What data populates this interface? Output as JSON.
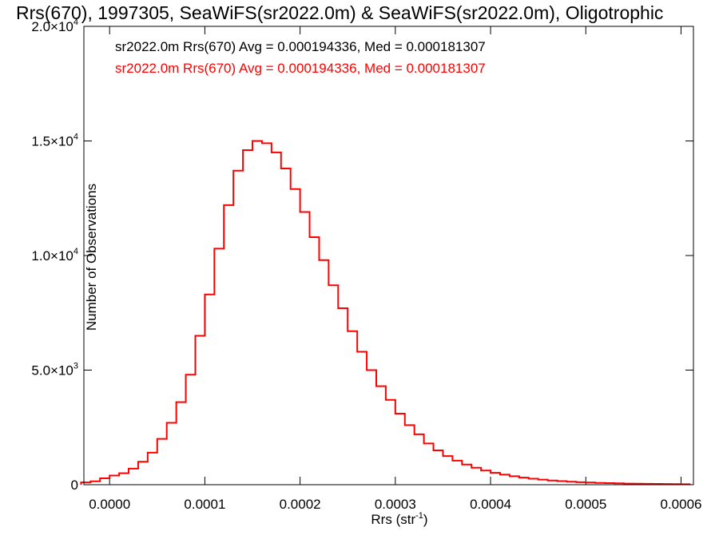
{
  "chart_data": {
    "type": "line",
    "title": "Rrs(670), 1997305, SeaWiFS(sr2022.0m) & SeaWiFS(sr2022.0m), Oligotrophic",
    "xlabel": "Rrs (str",
    "xlabel_sup": "-1",
    "xlabel_tail": ")",
    "ylabel": "Number of Observations",
    "xlim": [
      -2.7e-05,
      0.000613
    ],
    "ylim": [
      0,
      20000
    ],
    "x_ticks": [
      {
        "value": 0.0,
        "label": "0.0000"
      },
      {
        "value": 0.0001,
        "label": "0.0001"
      },
      {
        "value": 0.0002,
        "label": "0.0002"
      },
      {
        "value": 0.0003,
        "label": "0.0003"
      },
      {
        "value": 0.0004,
        "label": "0.0004"
      },
      {
        "value": 0.0005,
        "label": "0.0005"
      },
      {
        "value": 0.0006,
        "label": "0.0006"
      }
    ],
    "y_ticks": [
      {
        "value": 0,
        "mant": "0",
        "exp": ""
      },
      {
        "value": 5000,
        "mant": "5.0×10",
        "exp": "3"
      },
      {
        "value": 10000,
        "mant": "1.0×10",
        "exp": "4"
      },
      {
        "value": 15000,
        "mant": "1.5×10",
        "exp": "4"
      },
      {
        "value": 20000,
        "mant": "2.0×10",
        "exp": "4"
      }
    ],
    "grid": false,
    "legend_position": "top-left",
    "legend": [
      {
        "text": "sr2022.0m Rrs(670) Avg = 0.000194336, Med = 0.000181307",
        "color": "#000000"
      },
      {
        "text": "sr2022.0m Rrs(670) Avg = 0.000194336, Med = 0.000181307",
        "color": "#ff0000"
      }
    ],
    "series": [
      {
        "color": "#ff0000",
        "x": [
          -2.5e-05,
          -1.5e-05,
          -5e-06,
          5e-06,
          1.5e-05,
          2.5e-05,
          3.5e-05,
          4.5e-05,
          5.5e-05,
          6.5e-05,
          7.5e-05,
          8.5e-05,
          9.5e-05,
          0.000105,
          0.000115,
          0.000125,
          0.000135,
          0.000145,
          0.000155,
          0.000165,
          0.000175,
          0.000185,
          0.000195,
          0.000205,
          0.000215,
          0.000225,
          0.000235,
          0.000245,
          0.000255,
          0.000265,
          0.000275,
          0.000285,
          0.000295,
          0.000305,
          0.000315,
          0.000325,
          0.000335,
          0.000345,
          0.000355,
          0.000365,
          0.000375,
          0.000385,
          0.000395,
          0.000405,
          0.000415,
          0.000425,
          0.000435,
          0.000445,
          0.000455,
          0.000465,
          0.000475,
          0.000485,
          0.000495,
          0.000505,
          0.000515,
          0.000525,
          0.000535,
          0.000545,
          0.000555,
          0.000565,
          0.000575,
          0.000585,
          0.000595,
          0.000605
        ],
        "y": [
          100,
          150,
          280,
          400,
          500,
          700,
          1000,
          1400,
          2000,
          2700,
          3600,
          4800,
          6500,
          8300,
          10300,
          12200,
          13700,
          14600,
          15000,
          14900,
          14500,
          13800,
          12900,
          11900,
          10800,
          9800,
          8700,
          7700,
          6700,
          5800,
          5000,
          4300,
          3700,
          3100,
          2600,
          2200,
          1800,
          1500,
          1250,
          1050,
          880,
          740,
          620,
          520,
          440,
          370,
          310,
          260,
          220,
          185,
          155,
          130,
          110,
          95,
          80,
          70,
          60,
          50,
          45,
          40,
          35,
          30,
          25,
          20
        ]
      }
    ]
  }
}
